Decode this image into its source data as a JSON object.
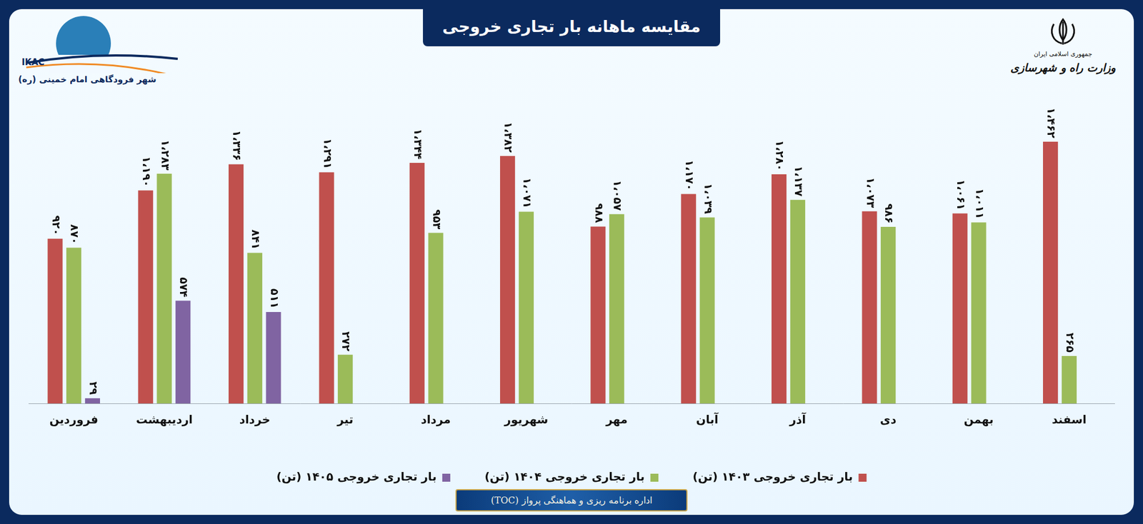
{
  "chart_data": {
    "type": "bar",
    "title": "مقایسه ماهانه بار تجاری خروجی",
    "categories": [
      "فروردین",
      "اردیبهشت",
      "خرداد",
      "تیر",
      "مرداد",
      "شهریور",
      "مهر",
      "آبان",
      "آذر",
      "دی",
      "بهمن",
      "اسفند"
    ],
    "series": [
      {
        "name": "بار تجاری خروجی ۱۴۰۳ (تن)",
        "color": "#c0504d",
        "values": [
          920,
          1190,
          1336,
          1291,
          1344,
          1382,
          988,
          1170,
          1280,
          1073,
          1061,
          1462
        ],
        "value_labels": [
          "۹۲۰",
          "۱،۱۹۰",
          "۱،۳۳۶",
          "۱،۲۹۱",
          "۱،۳۴۴",
          "۱،۳۸۲",
          "۹۸۸",
          "۱،۱۷۰",
          "۱،۲۸۰",
          "۱،۰۷۳",
          "۱،۰۶۱",
          "۱،۴۶۲"
        ]
      },
      {
        "name": "بار تجاری خروجی ۱۴۰۴ (تن)",
        "color": "#9bbb59",
        "values": [
          870,
          1283,
          841,
          272,
          953,
          1071,
          1057,
          1039,
          1137,
          986,
          1011,
          265
        ],
        "value_labels": [
          "۸۷۰",
          "۱،۲۸۳",
          "۸۴۱",
          "۲۷۲",
          "۹۵۳",
          "۱،۰۷۱",
          "۱،۰۵۷",
          "۱،۰۳۹",
          "۱،۱۳۷",
          "۹۸۶",
          "۱،۰۱۱",
          "۲۶۵"
        ]
      },
      {
        "name": "بار تجاری خروجی ۱۴۰۵ (تن)",
        "color": "#8064a2",
        "values": [
          29,
          574,
          511,
          null,
          null,
          null,
          null,
          null,
          null,
          null,
          null,
          null
        ],
        "value_labels": [
          "۲۹",
          "۵۷۴",
          "۵۱۱",
          null,
          null,
          null,
          null,
          null,
          null,
          null,
          null,
          null
        ]
      }
    ],
    "ylim": [
      0,
      1500
    ],
    "grid": false,
    "legend": "bottom",
    "data_labels": true,
    "tick_labels": "x"
  },
  "header": {
    "left_logo": [
      "IKAC",
      "شهر فرودگاهی امام خمینی (ره)"
    ],
    "right_logo": [
      "جمهوری اسلامی ایران",
      "وزارت راه و شهرسازی"
    ]
  },
  "footer": "اداره برنامه ریزی و هماهنگی پرواز (TOC)"
}
